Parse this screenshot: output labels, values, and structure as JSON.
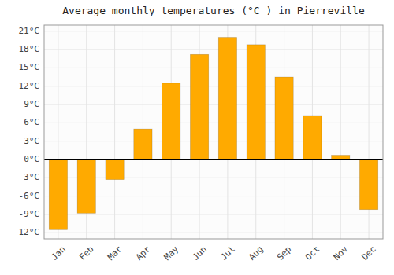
{
  "chart_data": {
    "type": "bar",
    "title": "Average monthly temperatures (°C ) in Pierreville",
    "categories": [
      "Jan",
      "Feb",
      "Mar",
      "Apr",
      "May",
      "Jun",
      "Jul",
      "Aug",
      "Sep",
      "Oct",
      "Nov",
      "Dec"
    ],
    "values": [
      -11.5,
      -8.8,
      -3.3,
      5.0,
      12.5,
      17.2,
      20.0,
      18.8,
      13.5,
      7.2,
      0.7,
      -8.2
    ],
    "color": "#FFAA00",
    "ylim": [
      -13,
      22
    ],
    "yticks": [
      {
        "value": -12,
        "label": "-12°C"
      },
      {
        "value": -9,
        "label": "-9°C"
      },
      {
        "value": -6,
        "label": "-6°C"
      },
      {
        "value": -3,
        "label": "-3°C"
      },
      {
        "value": 0,
        "label": "0°C"
      },
      {
        "value": 3,
        "label": "3°C"
      },
      {
        "value": 6,
        "label": "6°C"
      },
      {
        "value": 9,
        "label": "9°C"
      },
      {
        "value": 12,
        "label": "12°C"
      },
      {
        "value": 15,
        "label": "15°C"
      },
      {
        "value": 18,
        "label": "18°C"
      },
      {
        "value": 21,
        "label": "21°C"
      }
    ],
    "grid": true
  }
}
